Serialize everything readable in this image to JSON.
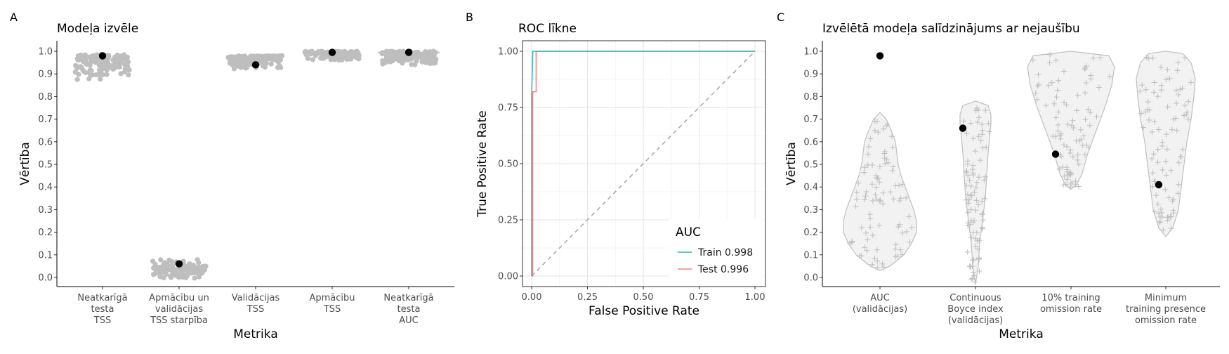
{
  "chart_data": [
    {
      "panel": "A",
      "type": "scatter",
      "title": "Modeļa izvēle",
      "xlabel": "Metrika",
      "ylabel": "Vērtība",
      "ylim": [
        -0.04,
        1.04
      ],
      "yticks": [
        "0.0",
        "0.1",
        "0.2",
        "0.3",
        "0.4",
        "0.5",
        "0.6",
        "0.7",
        "0.8",
        "0.9",
        "1.0"
      ],
      "categories": [
        [
          "Neatkarīgā",
          "testa",
          "TSS"
        ],
        [
          "Apmācību un",
          "validācijas",
          "TSS starpība"
        ],
        [
          "Validācijas",
          "TSS"
        ],
        [
          "Apmācību",
          "TSS"
        ],
        [
          "Neatkarīgā",
          "testa",
          "AUC"
        ]
      ],
      "selected": [
        0.98,
        0.06,
        0.94,
        0.995,
        0.995
      ],
      "candidate_ranges": [
        [
          0.84,
          0.985
        ],
        [
          -0.01,
          0.08
        ],
        [
          0.92,
          0.98
        ],
        [
          0.955,
          1.0
        ],
        [
          0.935,
          1.0
        ]
      ],
      "point_color": "#bebebe",
      "selected_color": "#000000"
    },
    {
      "panel": "B",
      "type": "line",
      "title": "ROC līkne",
      "xlabel": "False Positive Rate",
      "ylabel": "True Positive Rate",
      "xlim": [
        -0.02,
        1.04
      ],
      "ylim": [
        -0.04,
        1.04
      ],
      "xticks": [
        "0.00",
        "0.25",
        "0.50",
        "0.75",
        "1.00"
      ],
      "yticks": [
        "0.00",
        "0.25",
        "0.50",
        "0.75",
        "1.00"
      ],
      "legend_title": "AUC",
      "legend_position": "bottom-right",
      "series": [
        {
          "name": "Train 0.998",
          "color": "#2fb5b8",
          "x": [
            0,
            0,
            0.005,
            1.0
          ],
          "y": [
            0,
            0.8,
            1.0,
            1.0
          ]
        },
        {
          "name": "Test 0.996",
          "color": "#f08080",
          "x": [
            0,
            0.005,
            0.005,
            0.02,
            0.02,
            1.0
          ],
          "y": [
            0,
            0,
            0.82,
            0.82,
            1.0,
            1.0
          ]
        }
      ],
      "diagonal": {
        "x": [
          0,
          1
        ],
        "y": [
          0,
          1
        ],
        "color": "#a6a6a6"
      }
    },
    {
      "panel": "C",
      "type": "scatter",
      "title": "Izvēlētā modeļa salīdzinājums ar nejaušību",
      "xlabel": "Metrika",
      "ylabel": "Vērtība",
      "ylim": [
        -0.04,
        1.04
      ],
      "yticks": [
        "0.0",
        "0.1",
        "0.2",
        "0.3",
        "0.4",
        "0.5",
        "0.6",
        "0.7",
        "0.8",
        "0.9",
        "1.0"
      ],
      "categories": [
        [
          "AUC",
          "(validācijas)"
        ],
        [
          "Continuous",
          "Boyce index",
          "(validācijas)"
        ],
        [
          "10% training",
          "omission rate"
        ],
        [
          "Minimum",
          "training presence",
          "omission rate"
        ]
      ],
      "selected": [
        0.98,
        0.66,
        0.545,
        0.41
      ],
      "null_ranges": [
        [
          0.03,
          0.73
        ],
        [
          -0.03,
          0.78
        ],
        [
          0.39,
          1.0
        ],
        [
          0.18,
          1.0
        ]
      ],
      "violin_fill": "#f2f2f2",
      "violin_stroke": "#bfbfbf",
      "null_point_color": "#bebebe"
    }
  ]
}
